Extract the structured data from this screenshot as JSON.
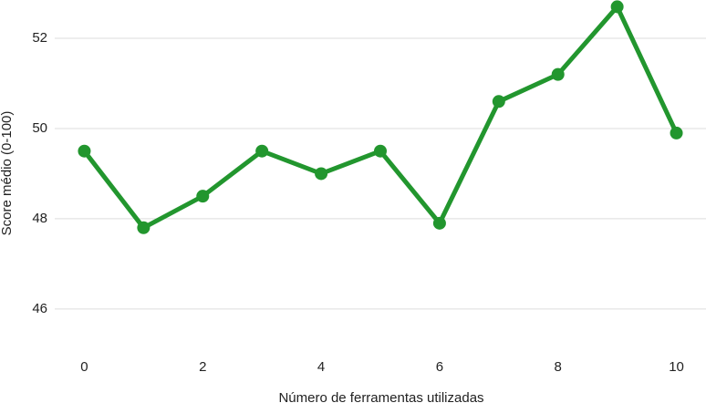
{
  "chart_data": {
    "type": "line",
    "x_label": "Número de ferramentas utilizadas",
    "y_label": "Score médio (0-100)",
    "x": [
      0,
      1,
      2,
      3,
      4,
      5,
      6,
      7,
      8,
      9,
      10
    ],
    "series": [
      {
        "name": "Score médio",
        "color": "#22962e",
        "values": [
          49.5,
          47.8,
          48.5,
          49.5,
          49.0,
          49.5,
          47.9,
          50.6,
          51.2,
          52.7,
          49.9
        ]
      }
    ],
    "xlim": [
      -0.5,
      10.5
    ],
    "xticks": [
      0,
      2,
      4,
      6,
      8,
      10
    ],
    "ylim": [
      45.35,
      52.85
    ],
    "yticks": [
      46,
      48,
      50,
      52
    ],
    "grid": true
  }
}
